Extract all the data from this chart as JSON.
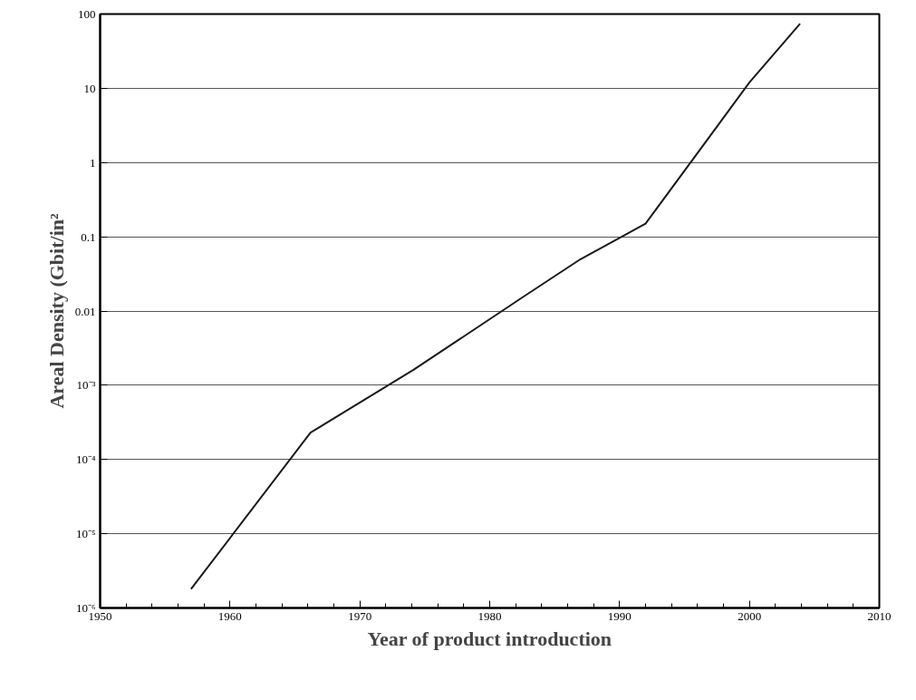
{
  "chart_data": {
    "type": "line",
    "xlabel": "Year of product introduction",
    "ylabel": "Areal Density (Gbit/in²",
    "x": [
      1957.0,
      1966.2,
      1974.1,
      1982.7,
      1987.0,
      1992.0,
      2000.0,
      2003.9
    ],
    "series": [
      {
        "color": "#1a1a1a",
        "values": [
          1.8e-06,
          0.00023,
          0.0016,
          0.016,
          0.05,
          0.15,
          12,
          74
        ]
      }
    ],
    "log": true,
    "grid": "y",
    "marker": "none",
    "line_style": "solid",
    "xlim": [
      1950,
      2010
    ],
    "xticks": [
      1950,
      {
        "value": 1952,
        "label": null
      },
      {
        "value": 1954,
        "label": null
      },
      {
        "value": 1956,
        "label": null
      },
      {
        "value": 1958,
        "label": null
      },
      1960,
      {
        "value": 1962,
        "label": null
      },
      {
        "value": 1964,
        "label": null
      },
      {
        "value": 1966,
        "label": null
      },
      {
        "value": 1968,
        "label": null
      },
      1970,
      {
        "value": 1972,
        "label": null
      },
      {
        "value": 1974,
        "label": null
      },
      {
        "value": 1976,
        "label": null
      },
      {
        "value": 1978,
        "label": null
      },
      1980,
      {
        "value": 1982,
        "label": null
      },
      {
        "value": 1984,
        "label": null
      },
      {
        "value": 1986,
        "label": null
      },
      {
        "value": 1988,
        "label": null
      },
      1990,
      {
        "value": 1992,
        "label": null
      },
      {
        "value": 1994,
        "label": null
      },
      {
        "value": 1996,
        "label": null
      },
      {
        "value": 1998,
        "label": null
      },
      2000,
      {
        "value": 2002,
        "label": null
      },
      {
        "value": 2004,
        "label": null
      },
      {
        "value": 2006,
        "label": null
      },
      {
        "value": 2008,
        "label": null
      },
      2010
    ],
    "ylim": [
      1e-06,
      100
    ],
    "yticks": [
      {
        "value": 1e-06,
        "label": "10⁻⁶"
      },
      {
        "value": 1e-05,
        "label": "10⁻⁵"
      },
      {
        "value": 0.0001,
        "label": "10⁻⁴"
      },
      {
        "value": 0.001,
        "label": "10⁻³"
      },
      0.01,
      0.1,
      1,
      10,
      100
    ]
  }
}
